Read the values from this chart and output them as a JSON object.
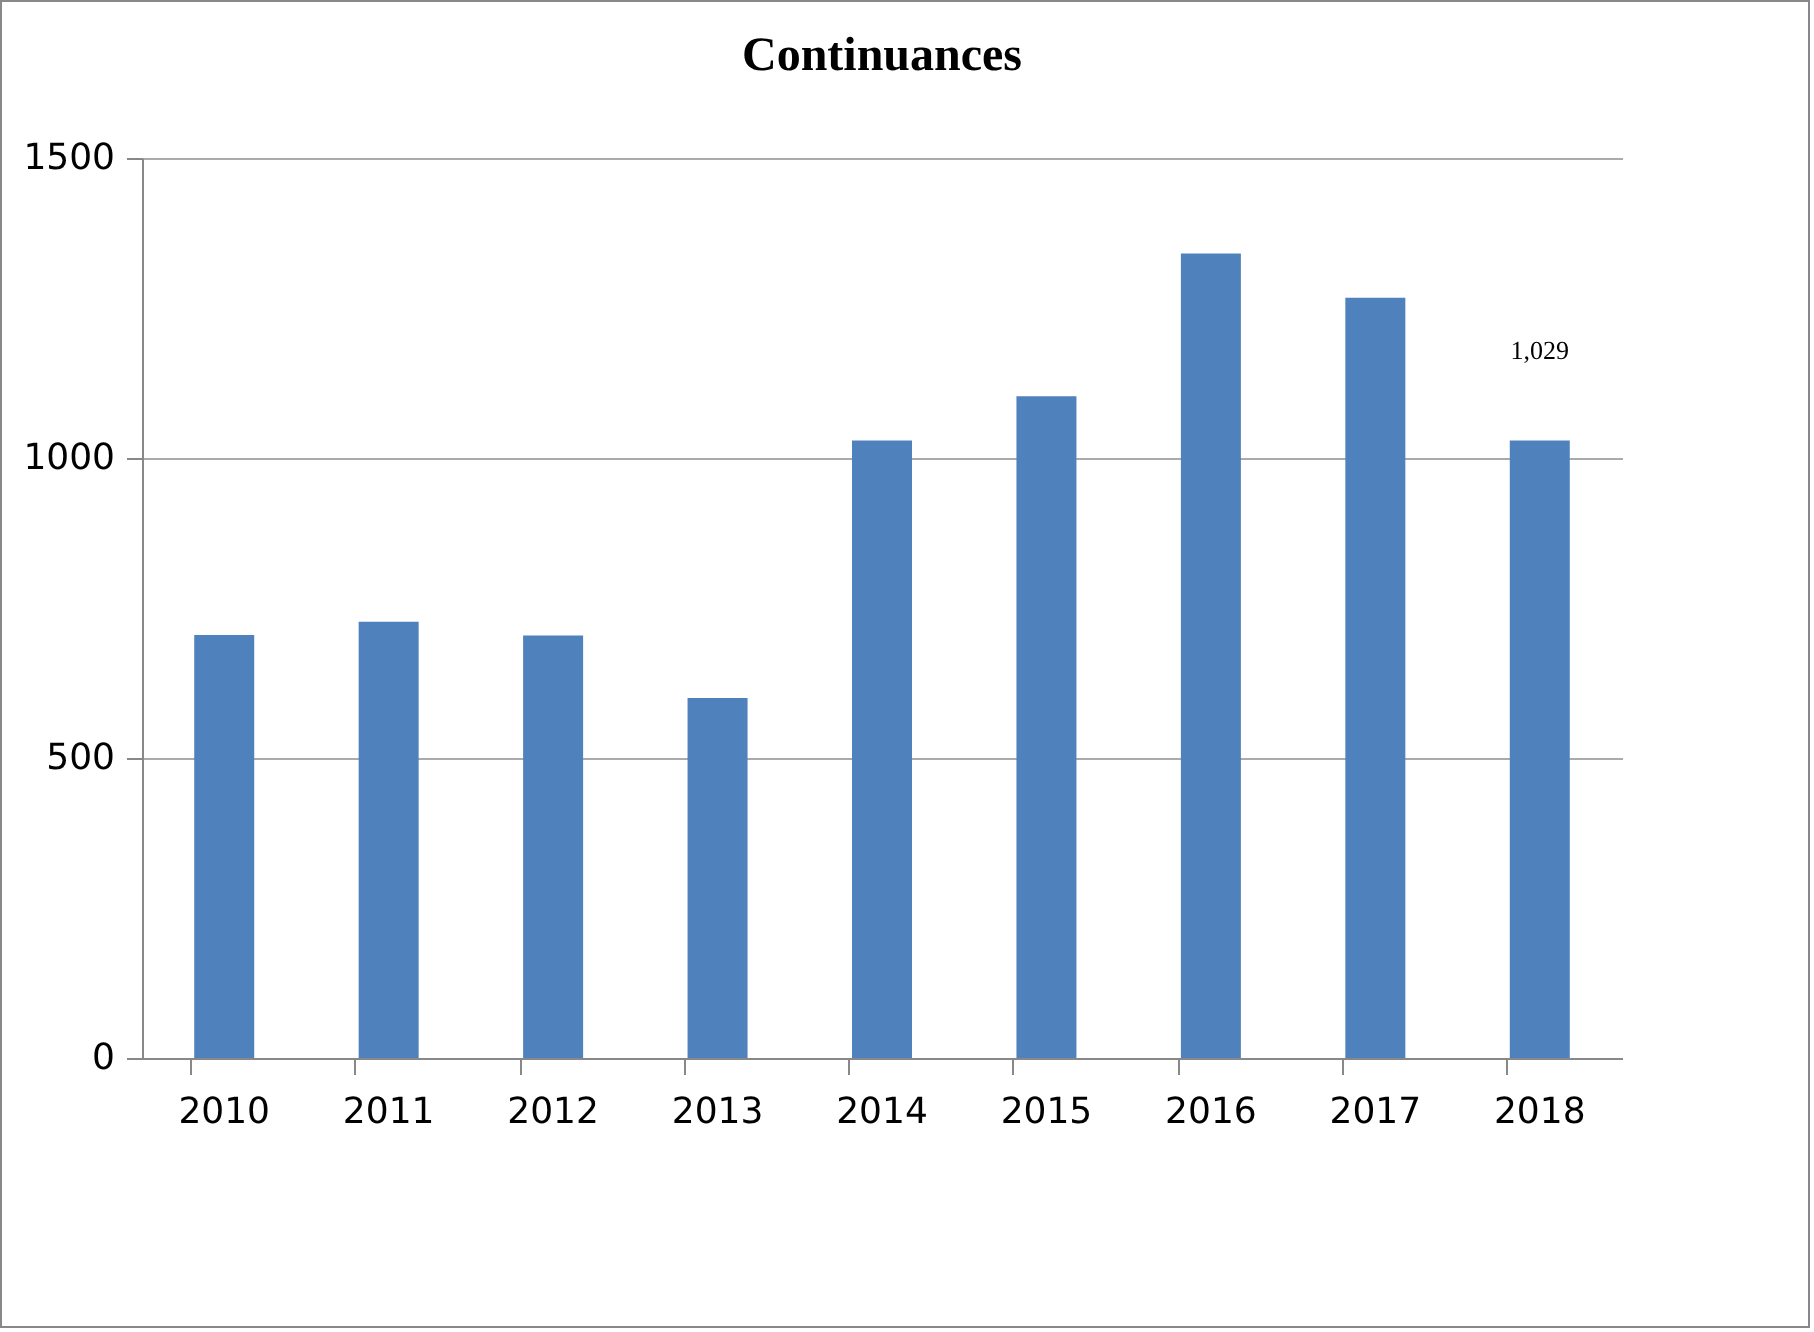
{
  "chart_data": {
    "type": "bar",
    "title": "Continuances",
    "categories": [
      "2010",
      "2011",
      "2012",
      "2013",
      "2014",
      "2015",
      "2016",
      "2017",
      "2018"
    ],
    "values": [
      705,
      727,
      704,
      600,
      1029,
      1103,
      1341,
      1267,
      1029
    ],
    "value_labels": [
      null,
      null,
      null,
      null,
      null,
      null,
      null,
      null,
      "1,029"
    ],
    "color": "#4f81bd",
    "ylim": [
      0,
      1500
    ],
    "yticks": [
      0,
      500,
      1000,
      1500
    ],
    "grid": "y"
  }
}
